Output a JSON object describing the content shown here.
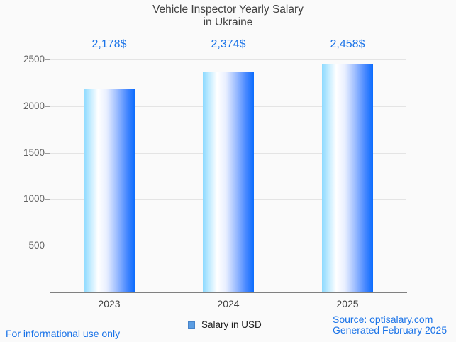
{
  "header": {
    "title_line1": "Vehicle Inspector Yearly Salary",
    "title_line2": "in Ukraine"
  },
  "chart_data": {
    "type": "bar",
    "title": "Vehicle Inspector Yearly Salary in Ukraine",
    "categories": [
      "2023",
      "2024",
      "2025"
    ],
    "values": [
      2178,
      2374,
      2458
    ],
    "value_labels": [
      "2,178$",
      "2,374$",
      "2,458$"
    ],
    "series": [
      {
        "name": "Salary in USD",
        "values": [
          2178,
          2374,
          2458
        ]
      }
    ],
    "xlabel": "",
    "ylabel": "",
    "ylim": [
      0,
      2500
    ],
    "yticks": [
      500,
      1000,
      1500,
      2000,
      2500
    ],
    "grid": true,
    "legend_position": "bottom"
  },
  "legend": {
    "label": "Salary in USD"
  },
  "footer": {
    "disclaimer": "For informational use only",
    "source": "Source: optisalary.com",
    "generated": "Generated February 2025"
  },
  "colors": {
    "background": "#fafafa",
    "title_text": "#424242",
    "value_label": "#1a73e8",
    "axis_label": "#616161",
    "category_label": "#424242",
    "gridline": "#e4e4e4",
    "axis_line": "#757575",
    "baseline": "#808080",
    "footer_text": "#1a73e8",
    "legend_text": "#1f1f1f",
    "legend_marker_fill": "#5b9de2",
    "legend_marker_border": "#4683c9",
    "bar_gradient": [
      "#8cdaff",
      "#ffffff",
      "#e9efff",
      "#9dbdff",
      "#4687ff",
      "#0b6cfd"
    ],
    "bar_gradient_stops": [
      0,
      28,
      45,
      65,
      85,
      100
    ]
  }
}
